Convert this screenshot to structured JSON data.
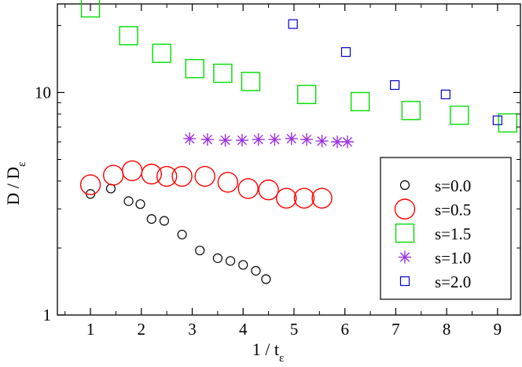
{
  "chart_data": {
    "type": "scatter",
    "title": "",
    "xlabel": {
      "main": "1 / t",
      "sub": "ε"
    },
    "ylabel": {
      "main": "D  /  D",
      "sub": "ε"
    },
    "xlim": [
      0.35,
      9.45
    ],
    "ylim": [
      1,
      25
    ],
    "yscale": "log",
    "grid": false,
    "legend_position": "bottom-right",
    "x_ticks": [
      1,
      2,
      3,
      4,
      5,
      6,
      7,
      8,
      9
    ],
    "y_ticks": [
      {
        "value": 1,
        "label": "1"
      },
      {
        "value": 10,
        "label": "10"
      }
    ],
    "series": [
      {
        "name": "s=0.0",
        "marker": "circle-small",
        "color": "#000000",
        "points": [
          [
            1.0,
            3.5
          ],
          [
            1.4,
            3.7
          ],
          [
            1.75,
            3.25
          ],
          [
            1.98,
            3.15
          ],
          [
            2.2,
            2.7
          ],
          [
            2.45,
            2.65
          ],
          [
            2.8,
            2.3
          ],
          [
            3.15,
            1.95
          ],
          [
            3.5,
            1.8
          ],
          [
            3.75,
            1.75
          ],
          [
            4.0,
            1.68
          ],
          [
            4.25,
            1.58
          ],
          [
            4.45,
            1.45
          ]
        ]
      },
      {
        "name": "s=0.5",
        "marker": "circle-large",
        "color": "#ff0000",
        "points": [
          [
            1.0,
            3.85
          ],
          [
            1.45,
            4.25
          ],
          [
            1.82,
            4.45
          ],
          [
            2.2,
            4.3
          ],
          [
            2.5,
            4.2
          ],
          [
            2.8,
            4.2
          ],
          [
            3.25,
            4.2
          ],
          [
            3.7,
            3.95
          ],
          [
            4.1,
            3.7
          ],
          [
            4.5,
            3.65
          ],
          [
            4.85,
            3.35
          ],
          [
            5.2,
            3.35
          ],
          [
            5.55,
            3.35
          ]
        ]
      },
      {
        "name": "s=1.5",
        "marker": "square-large",
        "color": "#00dd00",
        "points": [
          [
            1.0,
            24.0
          ],
          [
            1.75,
            18.0
          ],
          [
            2.4,
            15.0
          ],
          [
            3.05,
            12.8
          ],
          [
            3.6,
            12.2
          ],
          [
            4.15,
            11.2
          ],
          [
            5.25,
            9.8
          ],
          [
            6.3,
            9.1
          ],
          [
            7.3,
            8.3
          ],
          [
            8.25,
            7.9
          ],
          [
            9.2,
            7.3
          ]
        ]
      },
      {
        "name": "s=1.0",
        "marker": "asterisk",
        "color": "#9b30e0",
        "points": [
          [
            2.95,
            6.2
          ],
          [
            3.3,
            6.15
          ],
          [
            3.65,
            6.1
          ],
          [
            3.98,
            6.1
          ],
          [
            4.3,
            6.15
          ],
          [
            4.62,
            6.15
          ],
          [
            4.95,
            6.2
          ],
          [
            5.25,
            6.15
          ],
          [
            5.55,
            6.05
          ],
          [
            5.85,
            6.0
          ],
          [
            6.05,
            6.0
          ]
        ]
      },
      {
        "name": "s=2.0",
        "marker": "square-small",
        "color": "#0000cc",
        "points": [
          [
            4.98,
            20.3
          ],
          [
            6.02,
            15.2
          ],
          [
            6.98,
            10.8
          ],
          [
            7.98,
            9.8
          ],
          [
            9.0,
            7.5
          ]
        ]
      }
    ],
    "legend_order": [
      "s=0.0",
      "s=0.5",
      "s=1.5",
      "s=1.0",
      "s=2.0"
    ]
  }
}
